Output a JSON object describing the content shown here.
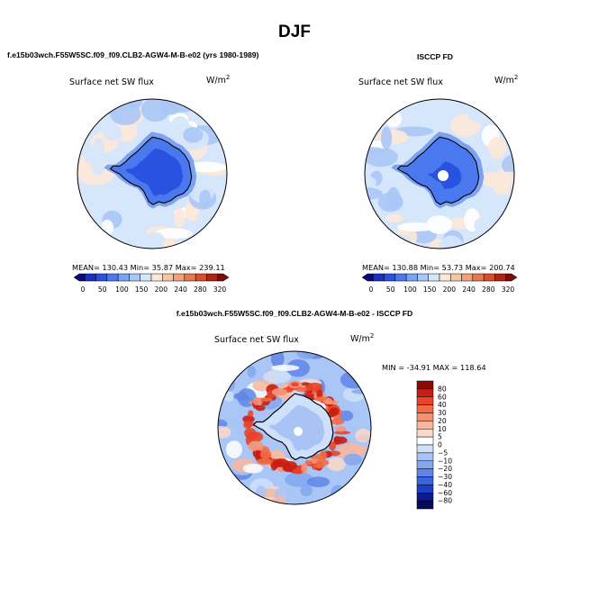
{
  "figure": {
    "season_title": "DJF",
    "diff_header": "f.e15b03wch.F55W5SC.f09_f09.CLB2-AGW4-M-B-e02 - ISCCP FD"
  },
  "chart_data": [
    {
      "type": "heatmap",
      "projection": "south polar stereographic",
      "header": "f.e15b03wch.F55W5SC.f09_f09.CLB2-AGW4-M-B-e02 (yrs 1980-1989)",
      "variable": "Surface net SW flux",
      "units": "W/m²",
      "stats": {
        "mean": 130.43,
        "min": 35.87,
        "max": 239.11
      },
      "stats_text": "MEAN= 130.43   Min=  35.87   Max= 239.11",
      "colorbar": {
        "orientation": "horizontal",
        "levels": [
          0,
          50,
          100,
          150,
          200,
          240,
          280,
          320
        ],
        "tick_labels": [
          "0",
          "50",
          "100",
          "150",
          "200",
          "240",
          "280",
          "320"
        ],
        "colors": [
          "#0a0a7a",
          "#1a2fc4",
          "#2a52e0",
          "#4a78ee",
          "#7ca2f2",
          "#aac6f6",
          "#d6e6fb",
          "#fde8d8",
          "#f8c5a6",
          "#f2a07c",
          "#e8764f",
          "#d44d2c",
          "#b02414",
          "#7a0f08"
        ]
      }
    },
    {
      "type": "heatmap",
      "projection": "south polar stereographic",
      "header": "ISCCP FD",
      "variable": "Surface net SW flux",
      "units": "W/m²",
      "stats": {
        "mean": 130.88,
        "min": 53.73,
        "max": 200.74
      },
      "stats_text": "MEAN= 130.88   Min=  53.73   Max= 200.74",
      "colorbar": {
        "orientation": "horizontal",
        "levels": [
          0,
          50,
          100,
          150,
          200,
          240,
          280,
          320
        ],
        "tick_labels": [
          "0",
          "50",
          "100",
          "150",
          "200",
          "240",
          "280",
          "320"
        ],
        "colors": [
          "#0a0a7a",
          "#1a2fc4",
          "#2a52e0",
          "#4a78ee",
          "#7ca2f2",
          "#aac6f6",
          "#d6e6fb",
          "#fde8d8",
          "#f8c5a6",
          "#f2a07c",
          "#e8764f",
          "#d44d2c",
          "#b02414",
          "#7a0f08"
        ]
      }
    },
    {
      "type": "heatmap",
      "projection": "south polar stereographic",
      "variable": "Surface net SW flux",
      "units": "W/m²",
      "stats": {
        "min": -34.91,
        "max": 118.64
      },
      "stats_text": "MIN = -34.91 MAX = 118.64",
      "colorbar": {
        "orientation": "vertical",
        "levels": [
          80,
          60,
          40,
          30,
          20,
          10,
          5,
          0,
          -5,
          -10,
          -20,
          -30,
          -40,
          -60,
          -80
        ],
        "tick_labels": [
          "80",
          "60",
          "40",
          "30",
          "20",
          "10",
          "5",
          "0",
          "−5",
          "−10",
          "−20",
          "−30",
          "−40",
          "−60",
          "−80"
        ],
        "colors": [
          "#8c0a06",
          "#c81e12",
          "#e8442a",
          "#f26a46",
          "#f59273",
          "#f9b79e",
          "#fbd9c8",
          "#ffffff",
          "#cfe0fa",
          "#a9c4f4",
          "#84a6ee",
          "#5f86e6",
          "#3a64dc",
          "#1d3fc8",
          "#0d1a8c",
          "#060a5a"
        ]
      }
    }
  ]
}
